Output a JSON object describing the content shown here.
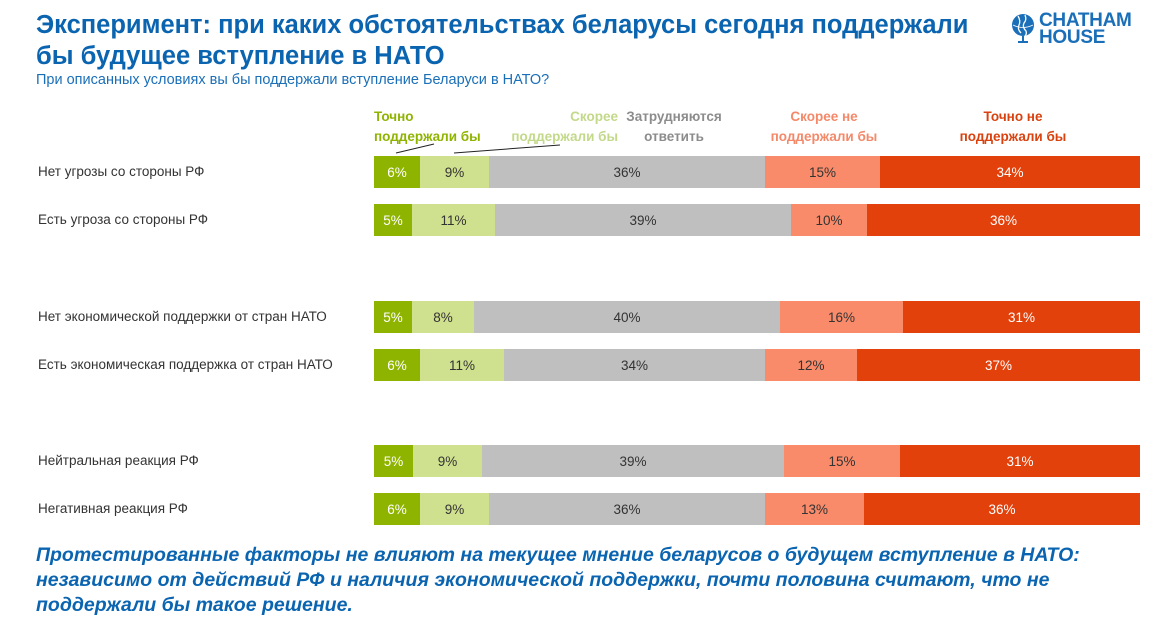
{
  "header": {
    "title": "Эксперимент: при каких обстоятельствах беларусы сегодня поддержали бы будущее вступление в НАТО",
    "subtitle": "При описанных условиях вы бы поддержали вступление Беларуси в НАТО?",
    "logo": {
      "line1": "CHATHAM",
      "line2": "HOUSE",
      "icon": "globe-icon"
    }
  },
  "chart_data": {
    "type": "bar",
    "orientation": "horizontal-stacked-100",
    "title": "При описанных условиях вы бы поддержали вступление Беларуси в НАТО?",
    "legend": [
      {
        "name": "Точно поддержали бы",
        "line1": "Точно",
        "line2": "поддержали бы",
        "color": "#8fb400",
        "text_color": "#8fb400",
        "value_color": "#ffffff"
      },
      {
        "name": "Скорее поддержали бы",
        "line1": "Скорее",
        "line2": "поддержали бы",
        "color": "#cfe08f",
        "text_color": "#c3d98a",
        "value_color": "#333333"
      },
      {
        "name": "Затрудняются ответить",
        "line1": "Затрудняются",
        "line2": "ответить",
        "color": "#bfbfbf",
        "text_color": "#8c8c8c",
        "value_color": "#333333"
      },
      {
        "name": "Скорее не поддержали бы",
        "line1": "Скорее не",
        "line2": "поддержали бы",
        "color": "#f98b6a",
        "text_color": "#f4896a",
        "value_color": "#333333"
      },
      {
        "name": "Точно не поддержали бы",
        "line1": "Точно не",
        "line2": "поддержали бы",
        "color": "#e2410c",
        "text_color": "#d9420f",
        "value_color": "#ffffff"
      }
    ],
    "categories": [
      "Нет угрозы со стороны РФ",
      "Есть угроза со стороны РФ",
      "Нет экономической поддержки от стран НАТО",
      "Есть экономическая поддержка от стран НАТО",
      "Нейтральная реакция РФ",
      "Негативная реакция РФ"
    ],
    "series": [
      {
        "name": "Точно поддержали бы",
        "values": [
          6,
          5,
          5,
          6,
          5,
          6
        ]
      },
      {
        "name": "Скорее поддержали бы",
        "values": [
          9,
          11,
          8,
          11,
          9,
          9
        ]
      },
      {
        "name": "Затрудняются ответить",
        "values": [
          36,
          39,
          40,
          34,
          39,
          36
        ]
      },
      {
        "name": "Скорее не поддержали бы",
        "values": [
          15,
          10,
          16,
          12,
          15,
          13
        ]
      },
      {
        "name": "Точно не поддержали бы",
        "values": [
          34,
          36,
          31,
          37,
          31,
          36
        ]
      }
    ],
    "value_suffix": "%",
    "groups": [
      [
        0,
        1
      ],
      [
        2,
        3
      ],
      [
        4,
        5
      ]
    ],
    "xlim": [
      0,
      100
    ],
    "grid": false,
    "legend_position": "top"
  },
  "conclusion": "Протестированные факторы не влияют на текущее мнение беларусов о будущем вступление в НАТО: независимо от действий РФ и наличия экономической поддержки, почти половина считают, что не поддержали бы такое решение."
}
